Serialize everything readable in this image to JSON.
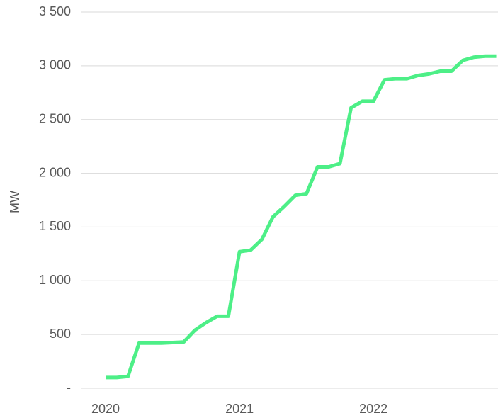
{
  "chart_data": {
    "type": "line",
    "ylabel": "MW",
    "x": [
      2020,
      2020.083,
      2020.167,
      2020.25,
      2020.333,
      2020.417,
      2020.5,
      2020.583,
      2020.667,
      2020.75,
      2020.833,
      2020.917,
      2021,
      2021.083,
      2021.167,
      2021.25,
      2021.333,
      2021.417,
      2021.5,
      2021.583,
      2021.667,
      2021.75,
      2021.833,
      2021.917,
      2022,
      2022.083,
      2022.167,
      2022.25,
      2022.333,
      2022.417,
      2022.5,
      2022.583,
      2022.667,
      2022.75,
      2022.833,
      2022.917
    ],
    "series": [
      {
        "name": "MW",
        "color": "#4def87",
        "values": [
          100,
          100,
          110,
          420,
          420,
          420,
          425,
          430,
          540,
          610,
          670,
          670,
          1270,
          1285,
          1385,
          1595,
          1690,
          1795,
          1810,
          2060,
          2060,
          2090,
          2610,
          2670,
          2670,
          2870,
          2880,
          2880,
          2910,
          2925,
          2950,
          2950,
          3050,
          3080,
          3090,
          3090
        ]
      }
    ],
    "xlim": [
      2019.82,
      2022.93
    ],
    "xticks": [
      2020,
      2021,
      2022
    ],
    "ylim": [
      0,
      3500
    ],
    "yticks": [
      {
        "value": 0,
        "label": "-"
      },
      {
        "value": 500,
        "label": "500"
      },
      {
        "value": 1000,
        "label": "1 000"
      },
      {
        "value": 1500,
        "label": "1 500"
      },
      {
        "value": 2000,
        "label": "2 000"
      },
      {
        "value": 2500,
        "label": "2 500"
      },
      {
        "value": 3000,
        "label": "3 000"
      },
      {
        "value": 3500,
        "label": "3 500"
      }
    ],
    "grid": true
  }
}
